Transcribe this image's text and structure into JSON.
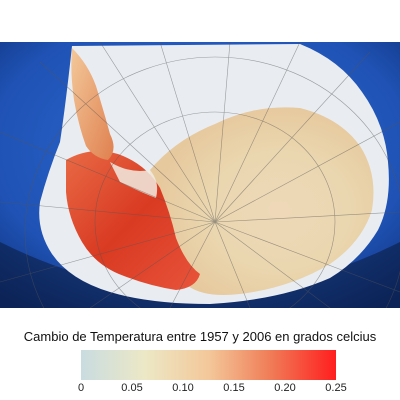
{
  "caption": "Cambio de Temperatura entre 1957 y 2006 en grados celcius",
  "legend": {
    "min": 0,
    "max": 0.25,
    "ticks": [
      "0",
      "0.05",
      "0.10",
      "0.15",
      "0.20",
      "0.25"
    ],
    "colors": {
      "low": "#c9dce0",
      "mid_low": "#ece8c6",
      "mid": "#f3c89a",
      "mid_high": "#f07a55",
      "high": "#ff1e1e"
    }
  },
  "map": {
    "subject": "Antarctica",
    "ocean_color": "#2a62c8",
    "ice_color": "#e9edf2",
    "warming_color": "#e0452f"
  }
}
